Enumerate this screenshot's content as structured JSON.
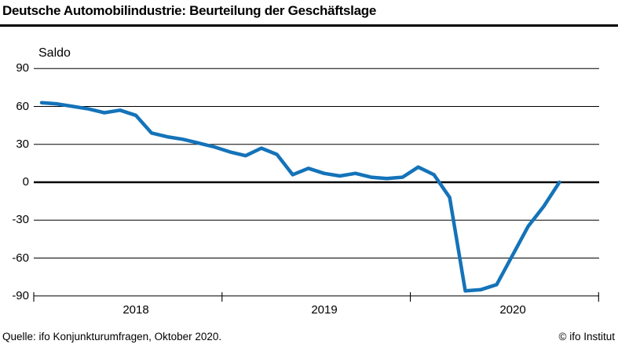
{
  "header": {
    "title": "Deutsche Automobilindustrie: Beurteilung der Geschäftslage"
  },
  "footer": {
    "source": "Quelle: ifo Konjunkturumfragen, Oktober 2020.",
    "copyright": "© ifo Institut"
  },
  "chart_data": {
    "type": "line",
    "title": "Deutsche Automobilindustrie: Beurteilung der Geschäftslage",
    "ylabel": "Saldo",
    "xlabel": "",
    "legend": "none",
    "grid": "horizontal",
    "ylim": [
      -90,
      90
    ],
    "y_ticks": [
      "90",
      "60",
      "30",
      "0",
      "-30",
      "-60",
      "-90"
    ],
    "x_tick_labels": [
      "2018",
      "2019",
      "2020"
    ],
    "line_color": "#1473b9",
    "x": [
      "2018-01",
      "2018-02",
      "2018-03",
      "2018-04",
      "2018-05",
      "2018-06",
      "2018-07",
      "2018-08",
      "2018-09",
      "2018-10",
      "2018-11",
      "2018-12",
      "2019-01",
      "2019-02",
      "2019-03",
      "2019-04",
      "2019-05",
      "2019-06",
      "2019-07",
      "2019-08",
      "2019-09",
      "2019-10",
      "2019-11",
      "2019-12",
      "2020-01",
      "2020-02",
      "2020-03",
      "2020-04",
      "2020-05",
      "2020-06",
      "2020-07",
      "2020-08",
      "2020-09",
      "2020-10"
    ],
    "series": [
      {
        "name": "Beurteilung der Geschäftslage (Saldo)",
        "values": [
          63,
          62,
          60,
          58,
          55,
          57,
          53,
          39,
          36,
          34,
          31,
          28,
          24,
          21,
          27,
          22,
          6,
          11,
          7,
          5,
          7,
          4,
          3,
          4,
          12,
          6,
          -12,
          -86,
          -85,
          -81,
          -58,
          -35,
          -19,
          0
        ]
      }
    ]
  }
}
